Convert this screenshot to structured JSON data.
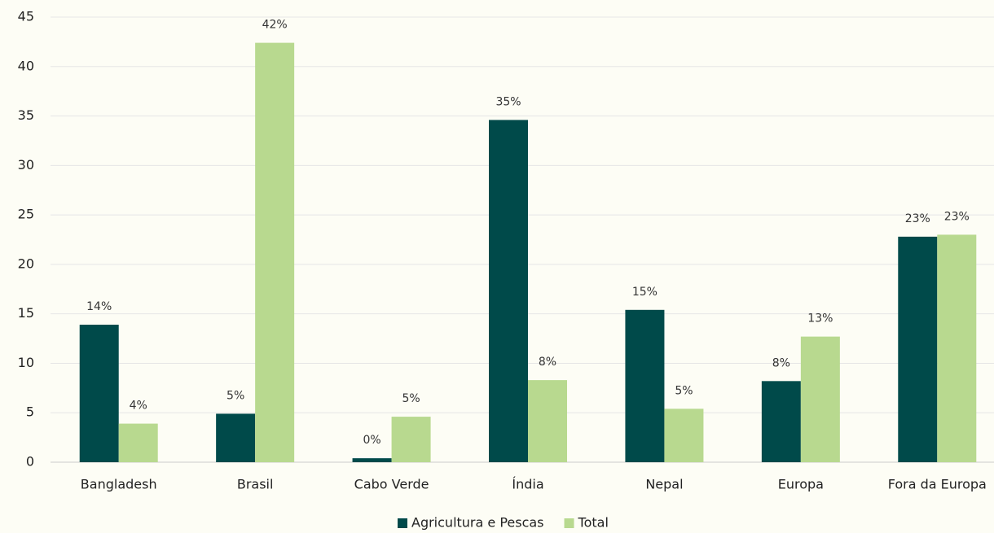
{
  "chart_data": {
    "type": "bar",
    "categories": [
      "Bangladesh",
      "Brasil",
      "Cabo Verde",
      "Índia",
      "Nepal",
      "Europa",
      "Fora da Europa"
    ],
    "series": [
      {
        "name": "Agricultura e Pescas",
        "color": "#004a4a",
        "values": [
          13.9,
          4.9,
          0.4,
          34.6,
          15.4,
          8.2,
          22.8
        ],
        "value_labels": [
          "14%",
          "5%",
          "0%",
          "35%",
          "15%",
          "8%",
          "23%"
        ]
      },
      {
        "name": "Total",
        "color": "#b8d98f",
        "values": [
          3.9,
          42.4,
          4.6,
          8.3,
          5.4,
          12.7,
          23.0
        ],
        "value_labels": [
          "4%",
          "42%",
          "5%",
          "8%",
          "5%",
          "13%",
          "23%"
        ]
      }
    ],
    "ylim": [
      0,
      45
    ],
    "yticks": [
      0,
      5,
      10,
      15,
      20,
      25,
      30,
      35,
      40,
      45
    ],
    "grid": true,
    "legend": "bottom"
  }
}
